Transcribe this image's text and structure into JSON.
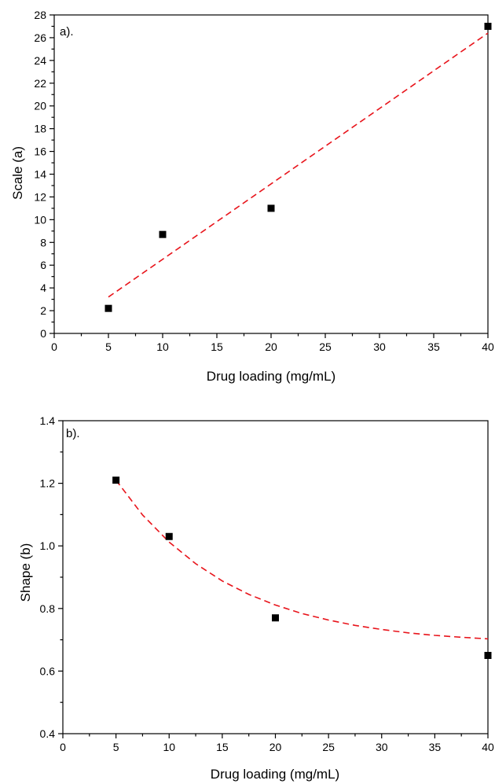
{
  "chart_data": [
    {
      "type": "scatter",
      "panel_label": "a).",
      "xlabel": "Drug loading (mg/mL)",
      "ylabel": "Scale (a)",
      "xlim": [
        0,
        40
      ],
      "ylim": [
        0,
        28
      ],
      "xticks": [
        0,
        5,
        10,
        15,
        20,
        25,
        30,
        35,
        40
      ],
      "yticks": [
        0,
        2,
        4,
        6,
        8,
        10,
        12,
        14,
        16,
        18,
        20,
        22,
        24,
        26,
        28
      ],
      "grid": false,
      "series": [
        {
          "x": [
            5,
            10,
            20,
            40
          ],
          "y": [
            2.2,
            8.7,
            11.0,
            27.0
          ],
          "color": "#000000",
          "marker": "square"
        }
      ],
      "fit": {
        "type": "linear",
        "x": [
          5,
          40
        ],
        "y": [
          3.2,
          26.4
        ],
        "color": "#e8141b",
        "style": "dashed"
      }
    },
    {
      "type": "scatter",
      "panel_label": "b).",
      "xlabel": "Drug loading (mg/mL)",
      "ylabel": "Shape (b)",
      "xlim": [
        0,
        40
      ],
      "ylim": [
        0.4,
        1.4
      ],
      "xticks": [
        0,
        5,
        10,
        15,
        20,
        25,
        30,
        35,
        40
      ],
      "yticks": [
        0.4,
        0.6,
        0.8,
        1.0,
        1.2,
        1.4
      ],
      "ytick_labels": [
        "0.4",
        "0.6",
        "0.8",
        "1.0",
        "1.2",
        "1.4"
      ],
      "grid": false,
      "series": [
        {
          "x": [
            5,
            10,
            20,
            40
          ],
          "y": [
            1.21,
            1.03,
            0.77,
            0.65
          ],
          "color": "#000000",
          "marker": "square"
        }
      ],
      "fit": {
        "type": "exponential_decay",
        "x": [
          5,
          7.5,
          10,
          12.5,
          15,
          17.5,
          20,
          22.5,
          25,
          27.5,
          30,
          32.5,
          35,
          37.5,
          40
        ],
        "y": [
          1.21,
          1.099,
          1.012,
          0.943,
          0.888,
          0.845,
          0.811,
          0.784,
          0.763,
          0.746,
          0.733,
          0.722,
          0.714,
          0.708,
          0.703
        ],
        "color": "#e8141b",
        "style": "dashed"
      }
    }
  ]
}
